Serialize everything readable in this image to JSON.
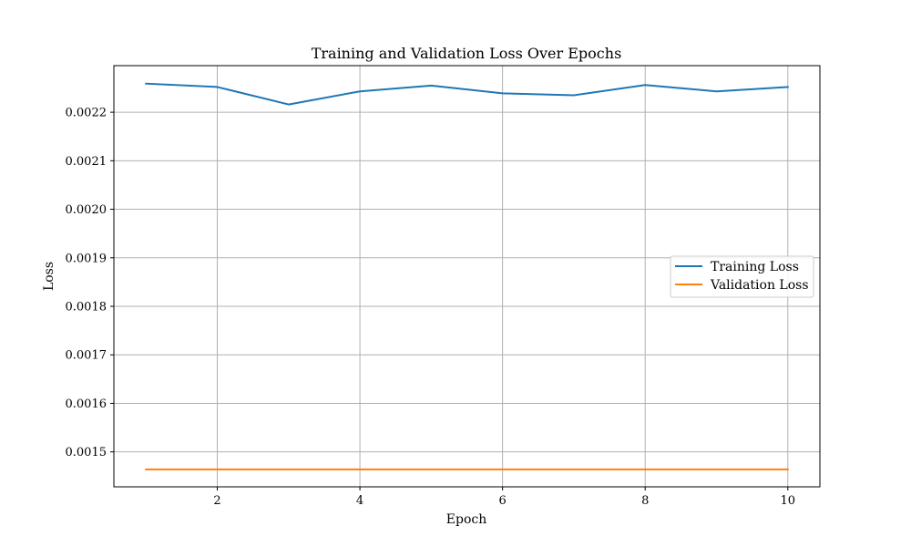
{
  "chart_data": {
    "type": "line",
    "title": "Training and Validation Loss Over Epochs",
    "xlabel": "Epoch",
    "ylabel": "Loss",
    "x": [
      1,
      2,
      3,
      4,
      5,
      6,
      7,
      8,
      9,
      10
    ],
    "xlim": [
      0.55,
      10.45
    ],
    "ylim": [
      0.001428,
      0.002296
    ],
    "xticks": [
      2,
      4,
      6,
      8,
      10
    ],
    "yticks": [
      0.0015,
      0.0016,
      0.0017,
      0.0018,
      0.0019,
      0.002,
      0.0021,
      0.0022
    ],
    "xtick_labels": [
      "2",
      "4",
      "6",
      "8",
      "10"
    ],
    "ytick_labels": [
      "0.0015",
      "0.0016",
      "0.0017",
      "0.0018",
      "0.0019",
      "0.0020",
      "0.0021",
      "0.0022"
    ],
    "grid": true,
    "legend_position": "center-right",
    "series": [
      {
        "name": "Training Loss",
        "color": "#1f77b4",
        "values": [
          0.002259,
          0.002252,
          0.002216,
          0.002243,
          0.002255,
          0.002239,
          0.002235,
          0.002256,
          0.002243,
          0.002252
        ]
      },
      {
        "name": "Validation Loss",
        "color": "#ff7f0e",
        "values": [
          0.001464,
          0.001464,
          0.001464,
          0.001464,
          0.001464,
          0.001464,
          0.001464,
          0.001464,
          0.001464,
          0.001464
        ]
      }
    ]
  }
}
